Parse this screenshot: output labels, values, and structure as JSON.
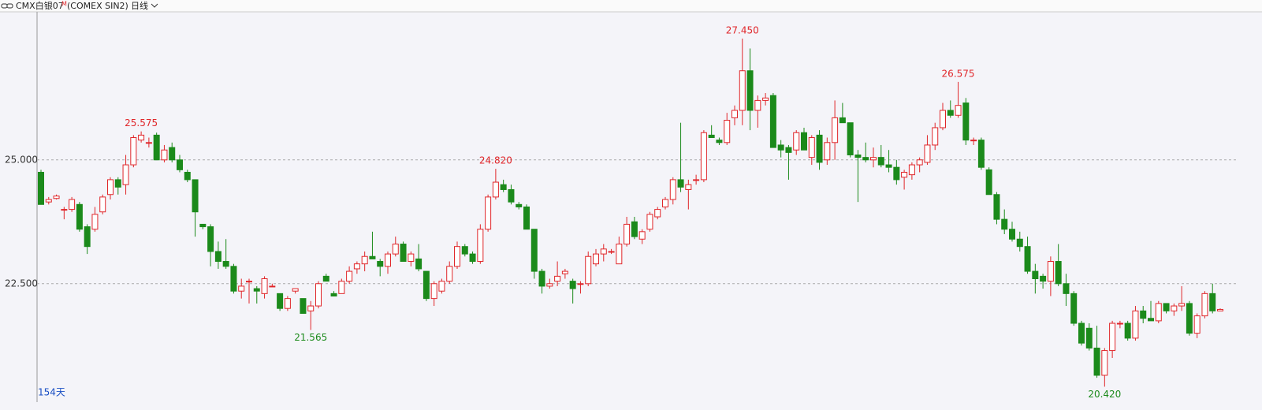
{
  "header": {
    "symbol": "CMX白银07",
    "flag": "M",
    "exchange": "(COMEX SIN2)",
    "period": "日线"
  },
  "chart_data": {
    "type": "candlestick",
    "ylim": [
      20.14,
      27.99
    ],
    "yticks": [
      {
        "value": 25,
        "label": "25.000"
      },
      {
        "value": 22.5,
        "label": "22.500"
      }
    ],
    "grid": true,
    "up_color": "#e0262a",
    "down_color": "#1b8a1b",
    "count_label": "154天",
    "ohlc": [
      [
        24.75,
        24.8,
        24.1,
        24.1
      ],
      [
        24.15,
        24.25,
        24.1,
        24.2
      ],
      [
        24.22,
        24.3,
        24.2,
        24.27
      ],
      [
        24.0,
        24.05,
        23.8,
        24.0
      ],
      [
        24.0,
        24.25,
        23.95,
        24.2
      ],
      [
        24.1,
        24.15,
        23.55,
        23.6
      ],
      [
        23.65,
        23.7,
        23.1,
        23.25
      ],
      [
        23.6,
        24.05,
        23.55,
        23.9
      ],
      [
        23.95,
        24.3,
        23.9,
        24.25
      ],
      [
        24.3,
        24.65,
        24.2,
        24.6
      ],
      [
        24.6,
        24.65,
        24.3,
        24.45
      ],
      [
        24.5,
        25.1,
        24.3,
        24.9
      ],
      [
        24.9,
        25.5,
        24.85,
        25.45
      ],
      [
        25.4,
        25.575,
        25.35,
        25.5
      ],
      [
        25.35,
        25.45,
        25.25,
        25.35
      ],
      [
        25.5,
        25.55,
        25.0,
        25.0
      ],
      [
        25.0,
        25.3,
        24.95,
        25.2
      ],
      [
        25.25,
        25.35,
        24.95,
        25.0
      ],
      [
        25.0,
        25.1,
        24.75,
        24.8
      ],
      [
        24.75,
        24.8,
        24.55,
        24.6
      ],
      [
        24.6,
        24.6,
        23.45,
        23.95
      ],
      [
        23.7,
        23.7,
        23.6,
        23.65
      ],
      [
        23.65,
        23.7,
        22.85,
        23.15
      ],
      [
        23.15,
        23.35,
        22.8,
        22.95
      ],
      [
        22.95,
        23.4,
        22.8,
        22.85
      ],
      [
        22.85,
        22.9,
        22.3,
        22.35
      ],
      [
        22.35,
        22.6,
        22.2,
        22.45
      ],
      [
        22.55,
        22.6,
        22.1,
        22.55
      ],
      [
        22.4,
        22.45,
        22.1,
        22.35
      ],
      [
        22.3,
        22.65,
        22.2,
        22.6
      ],
      [
        22.45,
        22.5,
        22.45,
        22.45
      ],
      [
        22.3,
        22.3,
        21.95,
        22.0
      ],
      [
        22.0,
        22.25,
        21.95,
        22.2
      ],
      [
        22.35,
        22.4,
        22.3,
        22.4
      ],
      [
        22.2,
        22.2,
        21.9,
        21.9
      ],
      [
        21.95,
        22.15,
        21.565,
        22.05
      ],
      [
        22.05,
        22.55,
        22.0,
        22.5
      ],
      [
        22.65,
        22.7,
        22.55,
        22.55
      ],
      [
        22.3,
        22.35,
        22.25,
        22.25
      ],
      [
        22.3,
        22.6,
        22.3,
        22.55
      ],
      [
        22.55,
        22.85,
        22.5,
        22.75
      ],
      [
        22.8,
        22.95,
        22.7,
        22.9
      ],
      [
        22.9,
        23.15,
        22.75,
        23.05
      ],
      [
        23.05,
        23.55,
        23.0,
        23.0
      ],
      [
        22.95,
        23.0,
        22.65,
        22.85
      ],
      [
        22.85,
        23.15,
        22.7,
        23.1
      ],
      [
        23.1,
        23.45,
        23.05,
        23.3
      ],
      [
        23.3,
        23.35,
        22.95,
        22.95
      ],
      [
        22.95,
        23.15,
        22.85,
        23.1
      ],
      [
        23.0,
        23.3,
        22.75,
        22.8
      ],
      [
        22.75,
        22.75,
        22.15,
        22.2
      ],
      [
        22.2,
        22.55,
        22.05,
        22.5
      ],
      [
        22.35,
        22.6,
        22.3,
        22.55
      ],
      [
        22.55,
        22.95,
        22.5,
        22.85
      ],
      [
        22.85,
        23.35,
        22.8,
        23.25
      ],
      [
        23.25,
        23.3,
        23.05,
        23.1
      ],
      [
        23.1,
        23.15,
        22.9,
        22.95
      ],
      [
        22.95,
        23.7,
        22.9,
        23.6
      ],
      [
        23.6,
        24.3,
        23.55,
        24.25
      ],
      [
        24.25,
        24.82,
        24.2,
        24.55
      ],
      [
        24.5,
        24.6,
        24.35,
        24.4
      ],
      [
        24.4,
        24.5,
        24.1,
        24.15
      ],
      [
        24.1,
        24.15,
        24.0,
        24.05
      ],
      [
        24.05,
        24.1,
        23.6,
        23.6
      ],
      [
        23.6,
        23.6,
        22.6,
        22.75
      ],
      [
        22.75,
        22.8,
        22.3,
        22.45
      ],
      [
        22.45,
        22.6,
        22.4,
        22.5
      ],
      [
        22.55,
        22.95,
        22.45,
        22.65
      ],
      [
        22.7,
        22.8,
        22.6,
        22.75
      ],
      [
        22.55,
        22.6,
        22.1,
        22.4
      ],
      [
        22.5,
        22.55,
        22.3,
        22.5
      ],
      [
        22.5,
        23.15,
        22.45,
        23.05
      ],
      [
        22.9,
        23.2,
        22.85,
        23.1
      ],
      [
        23.1,
        23.3,
        22.95,
        23.2
      ],
      [
        23.15,
        23.2,
        23.1,
        23.15
      ],
      [
        22.9,
        23.45,
        22.9,
        23.3
      ],
      [
        23.3,
        23.85,
        23.25,
        23.7
      ],
      [
        23.75,
        23.85,
        23.4,
        23.45
      ],
      [
        23.4,
        23.6,
        23.3,
        23.55
      ],
      [
        23.6,
        23.95,
        23.55,
        23.9
      ],
      [
        23.85,
        24.05,
        23.8,
        24.0
      ],
      [
        24.05,
        24.25,
        24.0,
        24.2
      ],
      [
        24.2,
        24.65,
        24.1,
        24.6
      ],
      [
        24.6,
        25.75,
        24.35,
        24.45
      ],
      [
        24.4,
        24.6,
        24.0,
        24.5
      ],
      [
        24.6,
        24.7,
        24.5,
        24.6
      ],
      [
        24.6,
        25.6,
        24.55,
        25.55
      ],
      [
        25.5,
        25.7,
        25.45,
        25.45
      ],
      [
        25.4,
        25.45,
        25.3,
        25.35
      ],
      [
        25.35,
        25.95,
        25.3,
        25.8
      ],
      [
        25.85,
        26.1,
        25.7,
        26.0
      ],
      [
        26.0,
        27.45,
        25.7,
        26.8
      ],
      [
        26.8,
        27.25,
        25.6,
        26.0
      ],
      [
        26.0,
        26.3,
        25.65,
        26.2
      ],
      [
        26.2,
        26.35,
        26.1,
        26.25
      ],
      [
        26.3,
        26.35,
        25.25,
        25.25
      ],
      [
        25.3,
        25.4,
        25.05,
        25.2
      ],
      [
        25.25,
        25.3,
        24.6,
        25.15
      ],
      [
        25.2,
        25.6,
        25.1,
        25.55
      ],
      [
        25.55,
        25.65,
        25.2,
        25.2
      ],
      [
        25.05,
        25.5,
        24.9,
        25.45
      ],
      [
        25.5,
        25.6,
        24.8,
        24.95
      ],
      [
        25.0,
        25.45,
        24.9,
        25.35
      ],
      [
        25.35,
        26.2,
        25.0,
        25.85
      ],
      [
        25.85,
        26.15,
        25.75,
        25.75
      ],
      [
        25.75,
        25.75,
        25.05,
        25.1
      ],
      [
        25.1,
        25.2,
        24.15,
        25.05
      ],
      [
        25.05,
        25.35,
        24.95,
        25.0
      ],
      [
        25.0,
        25.25,
        24.85,
        25.05
      ],
      [
        25.05,
        25.3,
        24.85,
        24.9
      ],
      [
        24.9,
        25.2,
        24.75,
        24.85
      ],
      [
        24.85,
        25.0,
        24.5,
        24.6
      ],
      [
        24.65,
        24.8,
        24.4,
        24.75
      ],
      [
        24.7,
        24.95,
        24.6,
        24.9
      ],
      [
        24.9,
        25.05,
        24.75,
        25.0
      ],
      [
        24.95,
        25.5,
        24.9,
        25.3
      ],
      [
        25.3,
        25.75,
        25.2,
        25.65
      ],
      [
        25.65,
        26.15,
        25.6,
        26.0
      ],
      [
        26.0,
        26.2,
        25.85,
        25.9
      ],
      [
        25.9,
        26.575,
        25.85,
        26.1
      ],
      [
        26.15,
        26.25,
        25.3,
        25.4
      ],
      [
        25.4,
        25.45,
        25.3,
        25.4
      ],
      [
        25.4,
        25.45,
        24.8,
        24.85
      ],
      [
        24.8,
        24.85,
        24.3,
        24.3
      ],
      [
        24.3,
        24.35,
        23.7,
        23.8
      ],
      [
        23.8,
        24.0,
        23.5,
        23.6
      ],
      [
        23.6,
        23.75,
        23.35,
        23.4
      ],
      [
        23.4,
        23.55,
        23.15,
        23.25
      ],
      [
        23.25,
        23.45,
        22.7,
        22.75
      ],
      [
        22.75,
        22.9,
        22.3,
        22.6
      ],
      [
        22.65,
        22.7,
        22.4,
        22.55
      ],
      [
        22.55,
        23.05,
        22.25,
        22.95
      ],
      [
        22.95,
        23.3,
        22.45,
        22.5
      ],
      [
        22.5,
        22.7,
        22.05,
        22.3
      ],
      [
        22.3,
        22.35,
        21.65,
        21.7
      ],
      [
        21.7,
        21.75,
        21.25,
        21.3
      ],
      [
        21.6,
        21.7,
        21.15,
        21.2
      ],
      [
        21.2,
        21.65,
        20.6,
        20.65
      ],
      [
        20.65,
        21.2,
        20.42,
        21.15
      ],
      [
        21.15,
        21.75,
        21.0,
        21.7
      ],
      [
        21.7,
        21.75,
        21.6,
        21.7
      ],
      [
        21.7,
        21.75,
        21.35,
        21.4
      ],
      [
        21.4,
        22.05,
        21.35,
        21.95
      ],
      [
        21.95,
        22.05,
        21.7,
        21.8
      ],
      [
        21.8,
        22.15,
        21.75,
        21.75
      ],
      [
        21.75,
        22.15,
        21.7,
        22.1
      ],
      [
        22.1,
        22.1,
        21.9,
        21.95
      ],
      [
        21.95,
        22.1,
        21.85,
        22.05
      ],
      [
        22.05,
        22.45,
        21.95,
        22.1
      ],
      [
        22.1,
        22.15,
        21.45,
        21.5
      ],
      [
        21.5,
        21.9,
        21.4,
        21.85
      ],
      [
        21.85,
        22.35,
        21.8,
        22.3
      ],
      [
        22.3,
        22.5,
        21.9,
        21.95
      ],
      [
        21.95,
        22.0,
        21.95,
        21.98
      ]
    ],
    "high_labels": [
      {
        "value": 25.575,
        "label": "25.575"
      },
      {
        "value": 24.82,
        "label": "24.820"
      },
      {
        "value": 27.45,
        "label": "27.450"
      },
      {
        "value": 26.575,
        "label": "26.575"
      }
    ],
    "low_labels": [
      {
        "value": 21.565,
        "label": "21.565"
      },
      {
        "value": 20.42,
        "label": "20.420"
      }
    ]
  }
}
